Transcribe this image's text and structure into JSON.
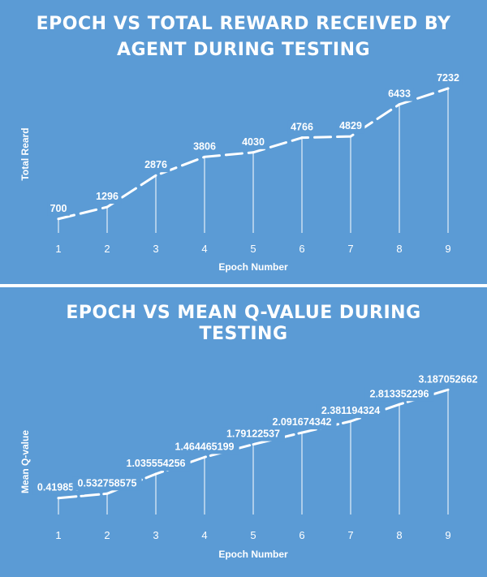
{
  "chart_data": [
    {
      "type": "line",
      "title_lines": [
        "EPOCH VS TOTAL REWARD RECEIVED BY",
        "AGENT DURING TESTING"
      ],
      "xlabel": "Epoch Number",
      "ylabel": "Total Reard",
      "categories": [
        "1",
        "2",
        "3",
        "4",
        "5",
        "6",
        "7",
        "8",
        "9"
      ],
      "values": [
        700,
        1296,
        2876,
        3806,
        4030,
        4766,
        4829,
        6433,
        7232
      ],
      "data_labels": [
        "700",
        "1296",
        "2876",
        "3806",
        "4030",
        "4766",
        "4829",
        "6433",
        "7232"
      ],
      "ylim": [
        0,
        7800
      ],
      "grid": false,
      "drop_lines": true,
      "series_color": "#ffffff",
      "background": "#5b9bd5"
    },
    {
      "type": "line",
      "title_lines": [
        "EPOCH VS MEAN Q-VALUE DURING",
        "TESTING"
      ],
      "xlabel": "Epoch Number",
      "ylabel": "Mean Q-value",
      "categories": [
        "1",
        "2",
        "3",
        "4",
        "5",
        "6",
        "7",
        "8",
        "9"
      ],
      "values": [
        0.419856,
        0.532758575,
        1.035554256,
        1.464465199,
        1.79122537,
        2.091674342,
        2.381194324,
        2.813352296,
        3.187052662
      ],
      "data_labels": [
        "0.419856",
        "0.532758575",
        "1.035554256",
        "1.464465199",
        "1.79122537",
        "2.091674342",
        "2.381194324",
        "2.813352296",
        "3.187052662"
      ],
      "ylim": [
        0,
        3.4
      ],
      "grid": false,
      "drop_lines": true,
      "series_color": "#ffffff",
      "background": "#5b9bd5"
    }
  ]
}
